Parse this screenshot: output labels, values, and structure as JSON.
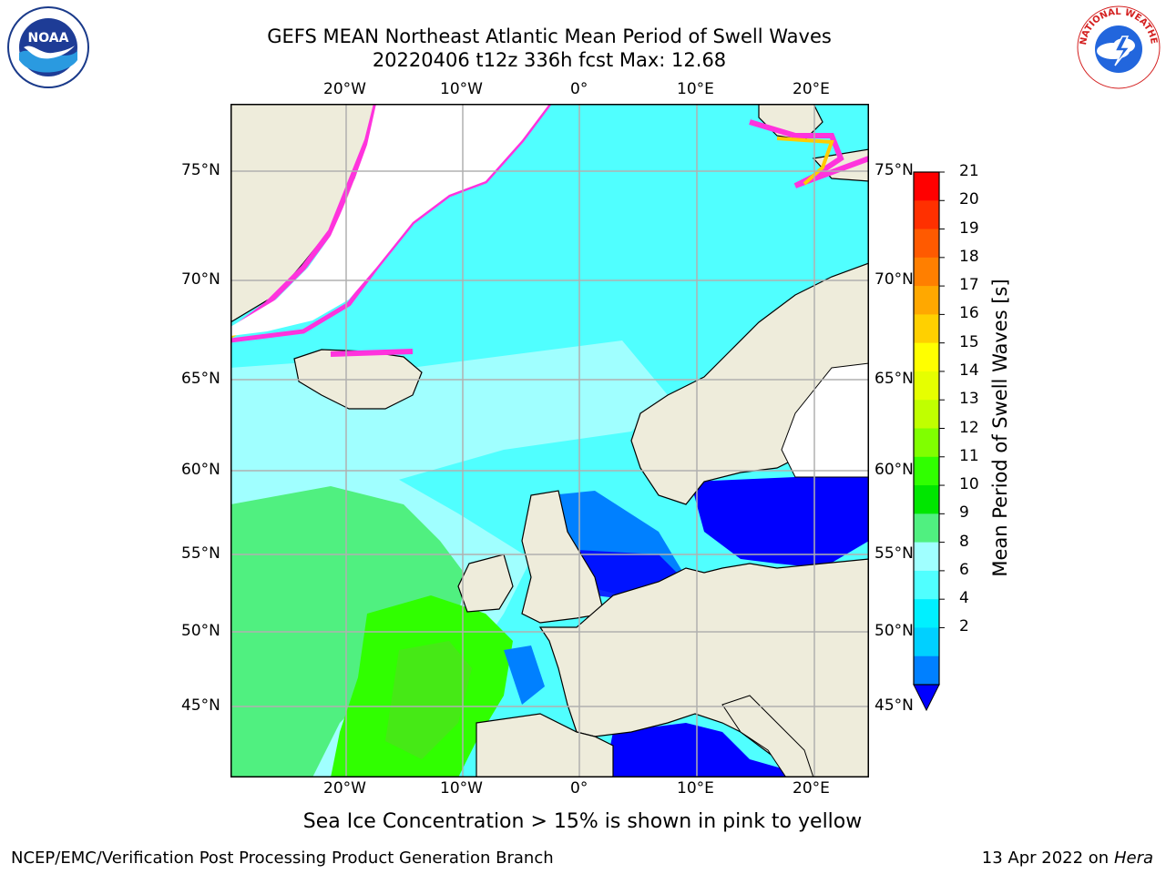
{
  "header": {
    "title_line1": "GEFS MEAN Northeast Atlantic Mean Period of Swell Waves",
    "title_line2": "20220406 t12z 336h fcst   Max: 12.68"
  },
  "logos": {
    "left": {
      "name": "NOAA",
      "text": "NOAA",
      "ring_text": "NATIONAL OCEANIC AND ATMOSPHERIC ADMINISTRATION · U.S. DEPARTMENT OF COMMERCE"
    },
    "right": {
      "name": "National Weather Service",
      "ring_text": "NATIONAL WEATHER SERVICE"
    }
  },
  "map": {
    "lon_ticks_top": [
      "20°W",
      "10°W",
      "0°",
      "10°E",
      "20°E"
    ],
    "lon_ticks_bottom": [
      "20°W",
      "10°W",
      "0°",
      "10°E",
      "20°E"
    ],
    "lat_ticks_left": [
      "75°N",
      "70°N",
      "65°N",
      "60°N",
      "55°N",
      "50°N",
      "45°N"
    ],
    "lat_ticks_right": [
      "75°N",
      "70°N",
      "65°N",
      "60°N",
      "55°N",
      "50°N",
      "45°N"
    ],
    "colors": {
      "land": "#eeecdb",
      "grid": "#b0b0b0",
      "coast": "#000000",
      "ice_edge": [
        "#ff33dd",
        "#ffcc00"
      ]
    }
  },
  "colorbar": {
    "title": "Mean Period of Swell Waves [s]",
    "labels": [
      "21",
      "20",
      "19",
      "18",
      "17",
      "16",
      "15",
      "14",
      "13",
      "12",
      "11",
      "10",
      "9",
      "8",
      "6",
      "4",
      "2"
    ],
    "colors": [
      "#ff0000",
      "#ff3000",
      "#ff5a00",
      "#ff7f00",
      "#ffa800",
      "#ffd000",
      "#ffff00",
      "#e6ff00",
      "#c0ff00",
      "#80ff00",
      "#30ff00",
      "#00e600",
      "#50f080",
      "#a0ffff",
      "#50ffff",
      "#00f0ff",
      "#00d0ff",
      "#0080ff"
    ],
    "under_color": "#0000ff"
  },
  "caption": "Sea Ice Concentration > 15% is shown in pink to yellow",
  "footer": {
    "left": "NCEP/EMC/Verification Post Processing Product Generation Branch",
    "right_prefix": "13 Apr 2022 on ",
    "right_host": "Hera"
  }
}
